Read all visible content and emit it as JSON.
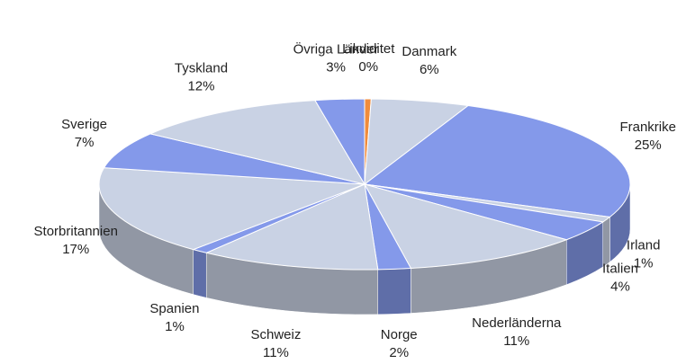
{
  "chart_data": {
    "type": "pie",
    "categories": [
      "Likviditet",
      "Danmark",
      "Frankrike",
      "Irland",
      "Italien",
      "Nederländerna",
      "Norge",
      "Schweiz",
      "Spanien",
      "Storbritannien",
      "Sverige",
      "Tyskland",
      "Övriga Länder"
    ],
    "values": [
      0.4,
      6,
      25,
      1,
      4,
      11,
      2,
      11,
      1,
      17,
      7,
      12,
      3
    ],
    "value_labels": [
      "0%",
      "6%",
      "25%",
      "1%",
      "4%",
      "11%",
      "2%",
      "11%",
      "1%",
      "17%",
      "7%",
      "12%",
      "3%"
    ],
    "colors": [
      "#f08c3c",
      "#c9d2e4",
      "#8499ea",
      "#c9d2e4",
      "#8499ea",
      "#c9d2e4",
      "#8499ea",
      "#c9d2e4",
      "#8499ea",
      "#c9d2e4",
      "#8499ea",
      "#c9d2e4",
      "#8499ea"
    ]
  }
}
